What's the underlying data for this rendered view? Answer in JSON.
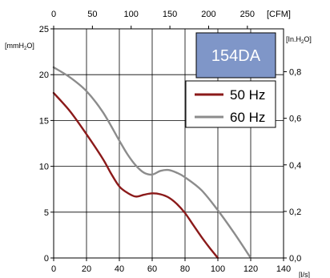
{
  "chart_data": {
    "type": "line",
    "model_label": "154DA",
    "x_axis_bottom": {
      "unit": "[l/s]",
      "ticks": [
        "0",
        "20",
        "40",
        "60",
        "80",
        "100",
        "120",
        "140"
      ],
      "range": [
        0,
        140
      ]
    },
    "x_axis_top": {
      "unit": "[CFM]",
      "ticks": [
        "0",
        "50",
        "100",
        "150",
        "200",
        "250"
      ],
      "values": [
        0,
        50,
        100,
        150,
        200,
        250
      ],
      "lps_per_cfm": 0.4719
    },
    "y_axis_left": {
      "unit_prefix": "[mmH",
      "unit_sub": "2",
      "unit_suffix": "O]",
      "ticks": [
        "0",
        "5",
        "10",
        "15",
        "20",
        "25"
      ],
      "range": [
        0,
        25
      ]
    },
    "y_axis_right": {
      "unit_prefix": "[In.H",
      "unit_sub": "2",
      "unit_suffix": "O]",
      "ticks": [
        "0,0",
        "0,2",
        "0,4",
        "0,6",
        "0,8"
      ],
      "values": [
        0,
        0.2,
        0.4,
        0.6,
        0.8
      ],
      "mm_per_inch": 25.4
    },
    "grid": true,
    "legend_position": "top-right",
    "series": [
      {
        "name": "50 Hz",
        "color": "#8b1a1a",
        "points": [
          [
            0,
            18
          ],
          [
            10,
            16
          ],
          [
            20,
            13.5
          ],
          [
            30,
            10.8
          ],
          [
            35,
            9.2
          ],
          [
            40,
            7.8
          ],
          [
            45,
            7.1
          ],
          [
            50,
            6.7
          ],
          [
            55,
            6.9
          ],
          [
            60,
            7.05
          ],
          [
            65,
            6.95
          ],
          [
            70,
            6.6
          ],
          [
            75,
            5.9
          ],
          [
            80,
            4.9
          ],
          [
            85,
            3.6
          ],
          [
            90,
            2.3
          ],
          [
            95,
            1.1
          ],
          [
            100,
            0
          ]
        ]
      },
      {
        "name": "60 Hz",
        "color": "#8c8c8c",
        "points": [
          [
            0,
            20.8
          ],
          [
            10,
            19.7
          ],
          [
            20,
            18.2
          ],
          [
            30,
            15.9
          ],
          [
            40,
            12.8
          ],
          [
            45,
            11.3
          ],
          [
            50,
            10.1
          ],
          [
            55,
            9.3
          ],
          [
            60,
            9.1
          ],
          [
            65,
            9.5
          ],
          [
            70,
            9.6
          ],
          [
            75,
            9.3
          ],
          [
            80,
            8.8
          ],
          [
            90,
            7.4
          ],
          [
            100,
            5.2
          ],
          [
            110,
            2.7
          ],
          [
            120,
            0
          ]
        ]
      }
    ]
  }
}
